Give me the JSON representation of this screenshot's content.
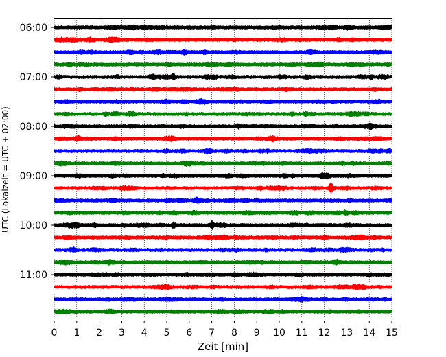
{
  "chart_data": {
    "type": "line",
    "title": "",
    "xlabel": "Zeit  [min]",
    "ylabel": "UTC (Lokalzeit = UTC + 02:00)",
    "xlim": [
      0,
      15
    ],
    "x_ticks": [
      "0",
      "1",
      "2",
      "3",
      "4",
      "5",
      "6",
      "7",
      "8",
      "9",
      "10",
      "11",
      "12",
      "13",
      "14",
      "15"
    ],
    "y_tick_labels": [
      "06:00",
      "07:00",
      "08:00",
      "09:00",
      "10:00",
      "11:00"
    ],
    "trace_start_times": [
      "06:00",
      "06:15",
      "06:30",
      "06:45",
      "07:00",
      "07:15",
      "07:30",
      "07:45",
      "08:00",
      "08:15",
      "08:30",
      "08:45",
      "09:00",
      "09:15",
      "09:30",
      "09:45",
      "10:00",
      "10:15",
      "10:30",
      "10:45",
      "11:00",
      "11:15",
      "11:30",
      "11:45"
    ],
    "trace_colors": [
      "#000000",
      "#ff0000",
      "#0000ff",
      "#008000"
    ],
    "vertical_grid": "dotted",
    "events": [
      {
        "trace": 4,
        "minute": 5.3,
        "amplitude": 2.5
      },
      {
        "trace": 4,
        "minute": 14.1,
        "amplitude": 2.0
      },
      {
        "trace": 8,
        "minute": 8.2,
        "amplitude": 2.0
      },
      {
        "trace": 13,
        "minute": 12.3,
        "amplitude": 5.5
      },
      {
        "trace": 16,
        "minute": 5.3,
        "amplitude": 2.5
      },
      {
        "trace": 16,
        "minute": 7.0,
        "amplitude": 4.5
      },
      {
        "trace": 16,
        "minute": 1.8,
        "amplitude": 1.8
      }
    ]
  }
}
